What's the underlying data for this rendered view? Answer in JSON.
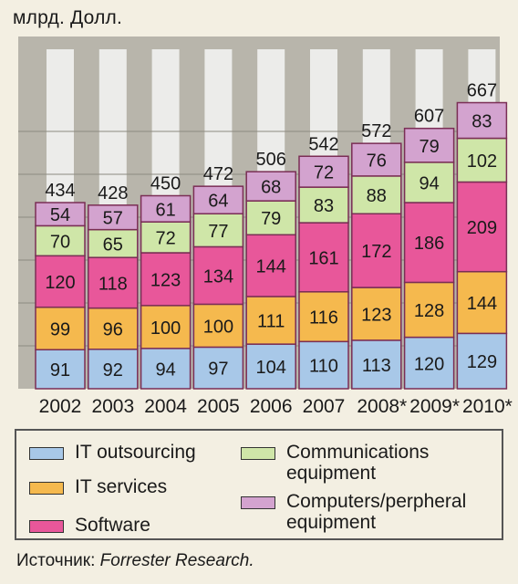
{
  "unit_label": "млрд. Долл.",
  "source": {
    "prefix": "Источник: ",
    "name": "Forrester Research."
  },
  "colors": {
    "IT outsourcing": "#a8c8e8",
    "IT services": "#f5b94e",
    "Software": "#e8579a",
    "Communications equipment": "#cfe6a8",
    "Computers/perpheral equipment": "#d3a3cf",
    "plot_bg": "#b8b5ab",
    "stripe": "#ececea",
    "bar_edge": "#7a2e55"
  },
  "legend": {
    "outsourcing": "IT outsourcing",
    "services": "IT services",
    "software": "Software",
    "comm_line1": "Communications",
    "comm_line2": "equipment",
    "comp_line1": "Computers/perpheral",
    "comp_line2": "equipment"
  },
  "chart_data": {
    "type": "bar",
    "stacked": true,
    "categories": [
      "2002",
      "2003",
      "2004",
      "2005",
      "2006",
      "2007",
      "2008*",
      "2009*",
      "2010*"
    ],
    "totals": [
      434,
      428,
      450,
      472,
      506,
      542,
      572,
      607,
      667
    ],
    "series": [
      {
        "name": "IT outsourcing",
        "values": [
          91,
          92,
          94,
          97,
          104,
          110,
          113,
          120,
          129
        ]
      },
      {
        "name": "IT services",
        "values": [
          99,
          96,
          100,
          100,
          111,
          116,
          123,
          128,
          144
        ]
      },
      {
        "name": "Software",
        "values": [
          120,
          118,
          123,
          134,
          144,
          161,
          172,
          186,
          209
        ]
      },
      {
        "name": "Communications equipment",
        "values": [
          70,
          65,
          72,
          77,
          79,
          83,
          88,
          94,
          102
        ]
      },
      {
        "name": "Computers/perpheral equipment",
        "values": [
          54,
          57,
          61,
          64,
          68,
          72,
          76,
          79,
          83
        ]
      }
    ],
    "ylim": [
      0,
      680
    ],
    "grid": true
  }
}
